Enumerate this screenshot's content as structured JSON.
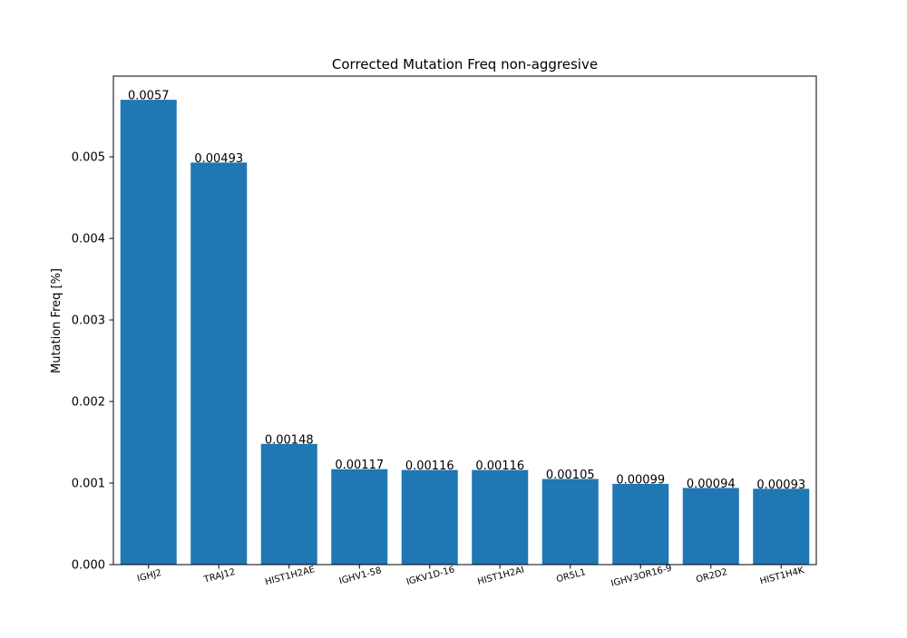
{
  "chart_data": {
    "type": "bar",
    "title": "Corrected Mutation Freq non-aggresive",
    "xlabel": "",
    "ylabel": "Mutation Freq [%]",
    "ylim": [
      0,
      0.00599
    ],
    "yticks": [
      "0.000",
      "0.001",
      "0.002",
      "0.003",
      "0.004",
      "0.005"
    ],
    "ytick_values": [
      0,
      0.001,
      0.002,
      0.003,
      0.004,
      0.005
    ],
    "categories": [
      "IGHJ2",
      "TRAJ12",
      "HIST1H2AE",
      "IGHV1-58",
      "IGKV1D-16",
      "HIST1H2AI",
      "OR5L1",
      "IGHV3OR16-9",
      "OR2D2",
      "HIST1H4K"
    ],
    "values": [
      0.0057,
      0.00493,
      0.00148,
      0.00117,
      0.00116,
      0.00116,
      0.00105,
      0.00099,
      0.00094,
      0.00093
    ],
    "data_labels": [
      "0.0057",
      "0.00493",
      "0.00148",
      "0.00117",
      "0.00116",
      "0.00116",
      "0.00105",
      "0.00099",
      "0.00094",
      "0.00093"
    ],
    "bar_color": "#1f77b4",
    "grid": false,
    "legend": "none",
    "x_tick_rotation_deg": 15
  }
}
